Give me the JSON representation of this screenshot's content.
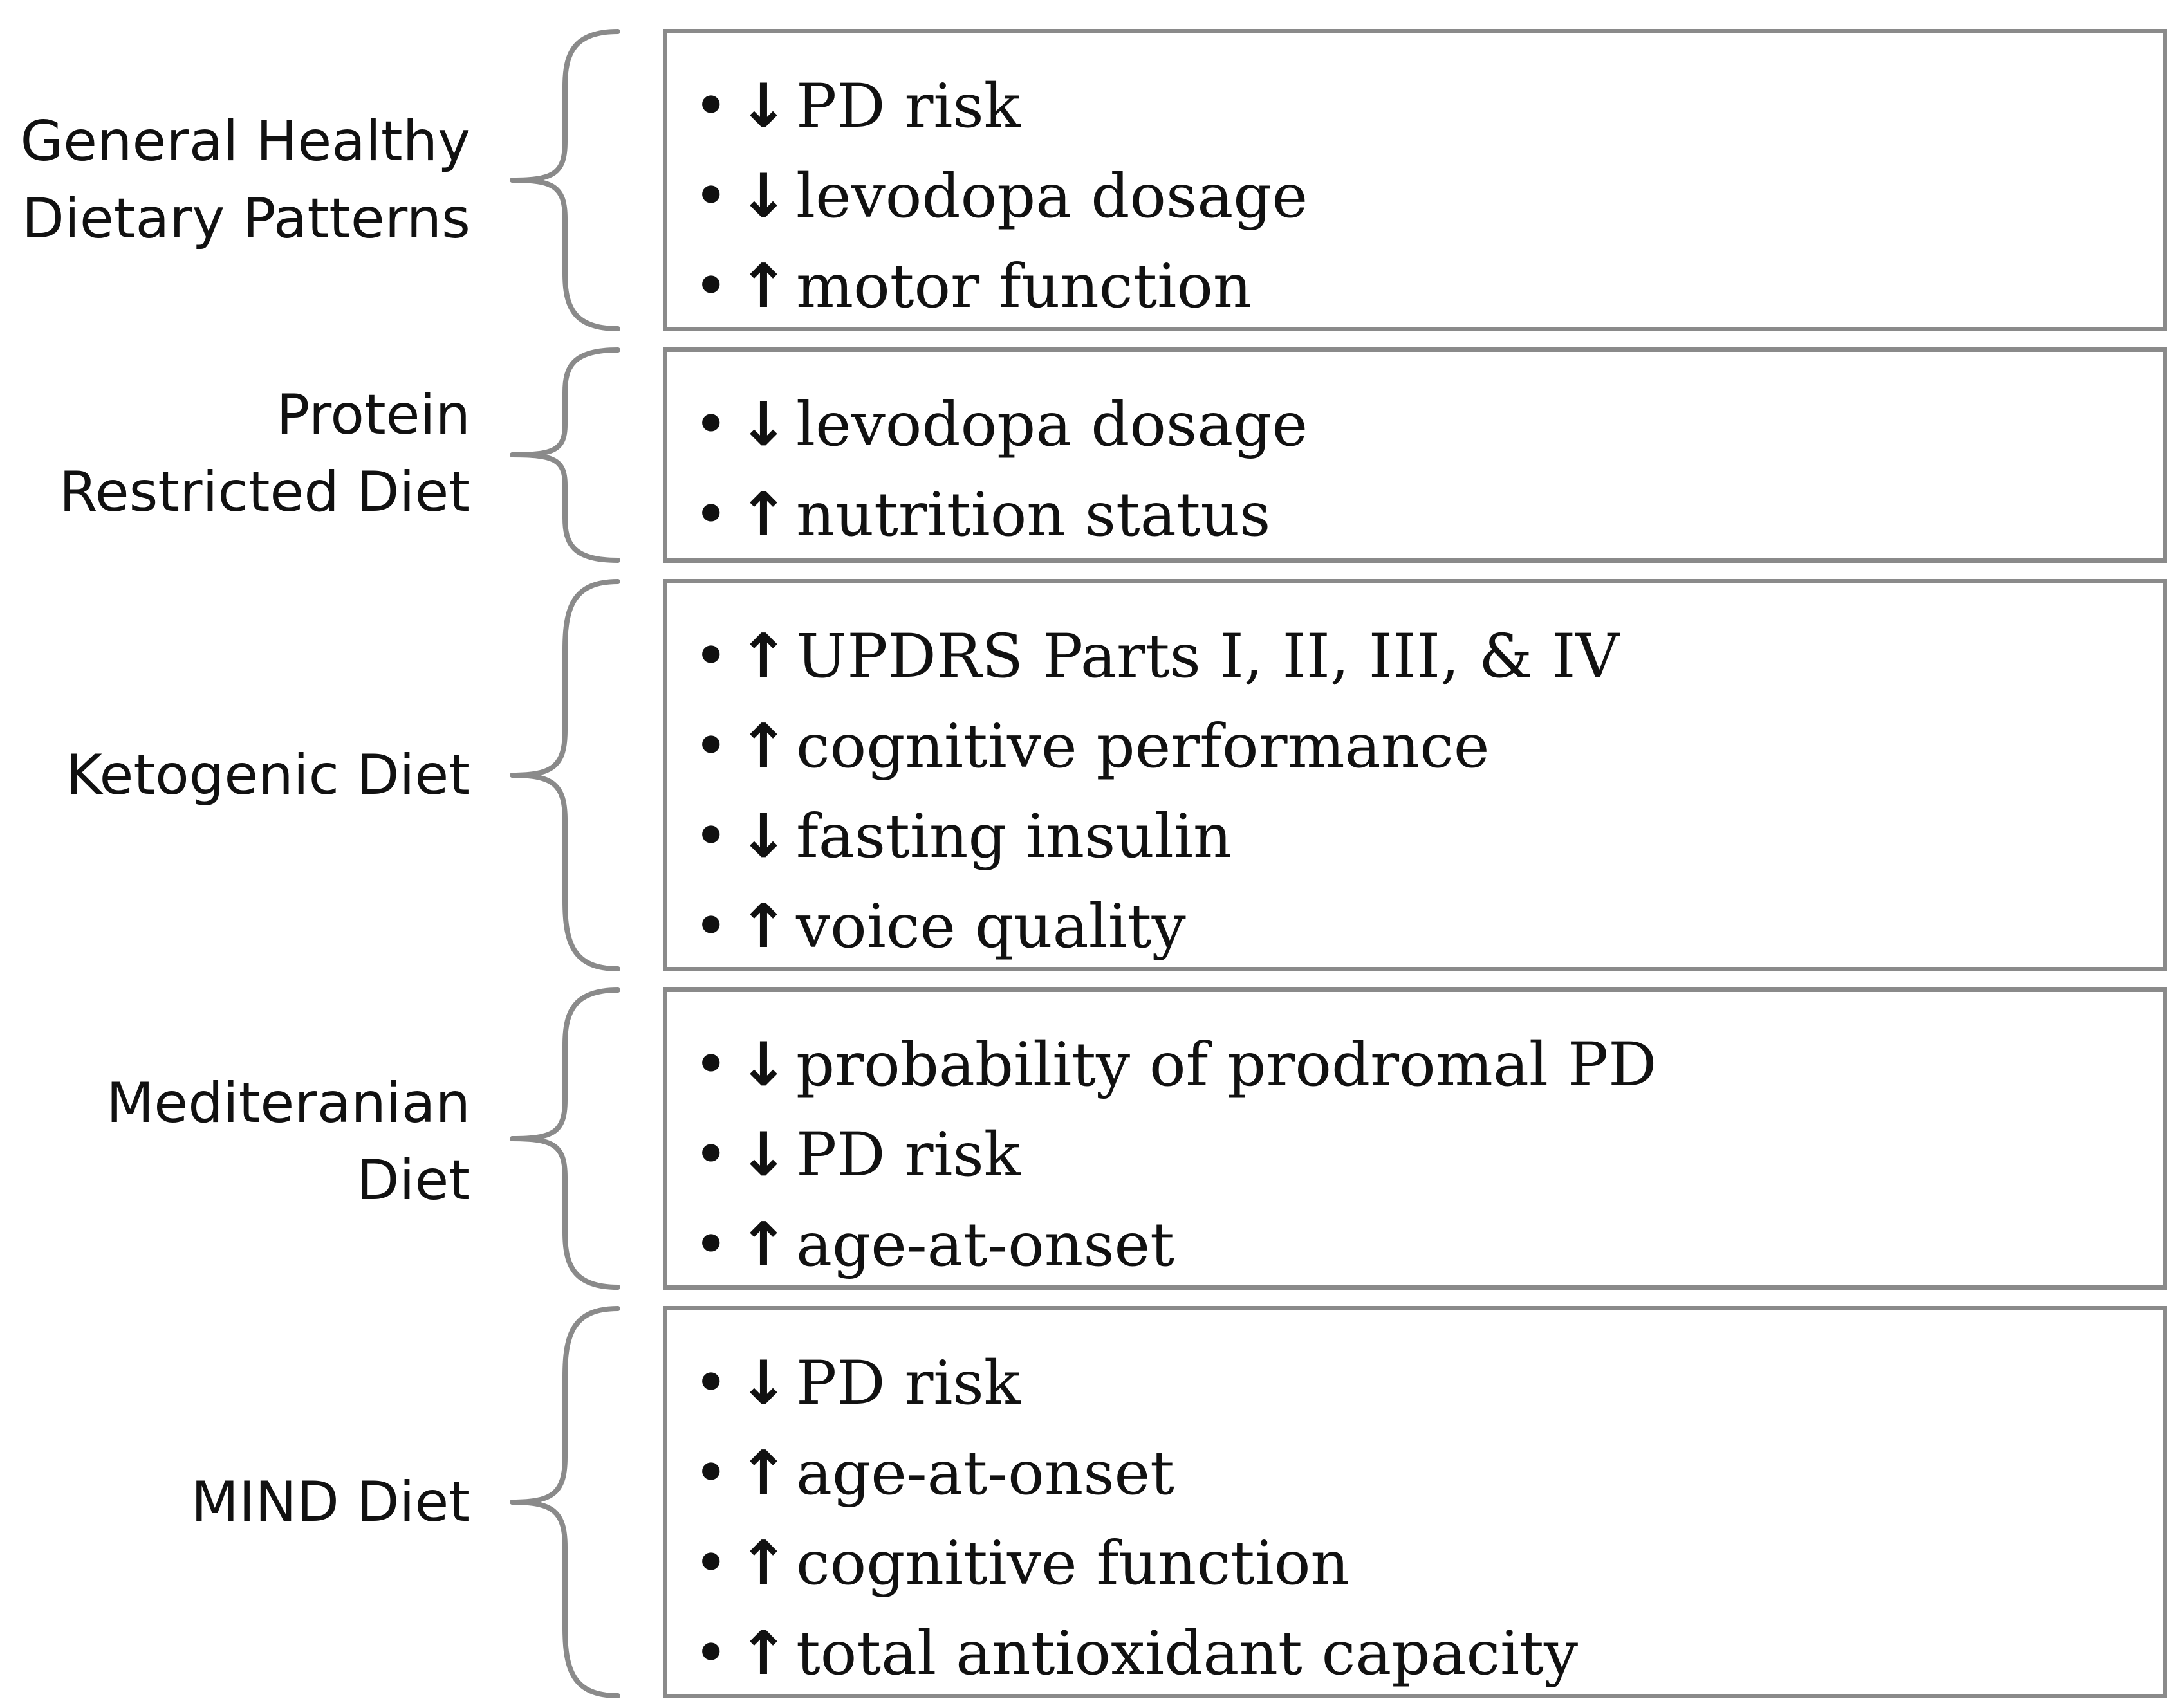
{
  "groups": [
    {
      "label": [
        "General Healthy",
        "Dietary Patterns"
      ],
      "effects": [
        {
          "dir": "↓",
          "text": "PD risk"
        },
        {
          "dir": "↓",
          "text": "levodopa dosage"
        },
        {
          "dir": "↑",
          "text": "motor function"
        }
      ]
    },
    {
      "label": [
        "Protein",
        "Restricted Diet"
      ],
      "effects": [
        {
          "dir": "↓",
          "text": "levodopa dosage"
        },
        {
          "dir": "↑",
          "text": "nutrition status"
        }
      ]
    },
    {
      "label": [
        "Ketogenic Diet"
      ],
      "effects": [
        {
          "dir": "↑",
          "text": "UPDRS Parts I, II, III, & IV"
        },
        {
          "dir": "↑",
          "text": "cognitive performance"
        },
        {
          "dir": "↓",
          "text": "fasting insulin"
        },
        {
          "dir": "↑",
          "text": "voice quality"
        }
      ]
    },
    {
      "label": [
        "Mediteranian",
        "Diet"
      ],
      "effects": [
        {
          "dir": "↓",
          "text": "probability of prodromal PD"
        },
        {
          "dir": "↓",
          "text": "PD risk"
        },
        {
          "dir": "↑",
          "text": "age-at-onset"
        }
      ]
    },
    {
      "label": [
        "MIND Diet"
      ],
      "effects": [
        {
          "dir": "↓",
          "text": "PD risk"
        },
        {
          "dir": "↑",
          "text": "age-at-onset"
        },
        {
          "dir": "↑",
          "text": "cognitive function"
        },
        {
          "dir": "↑",
          "text": "total antioxidant capacity"
        }
      ]
    }
  ]
}
